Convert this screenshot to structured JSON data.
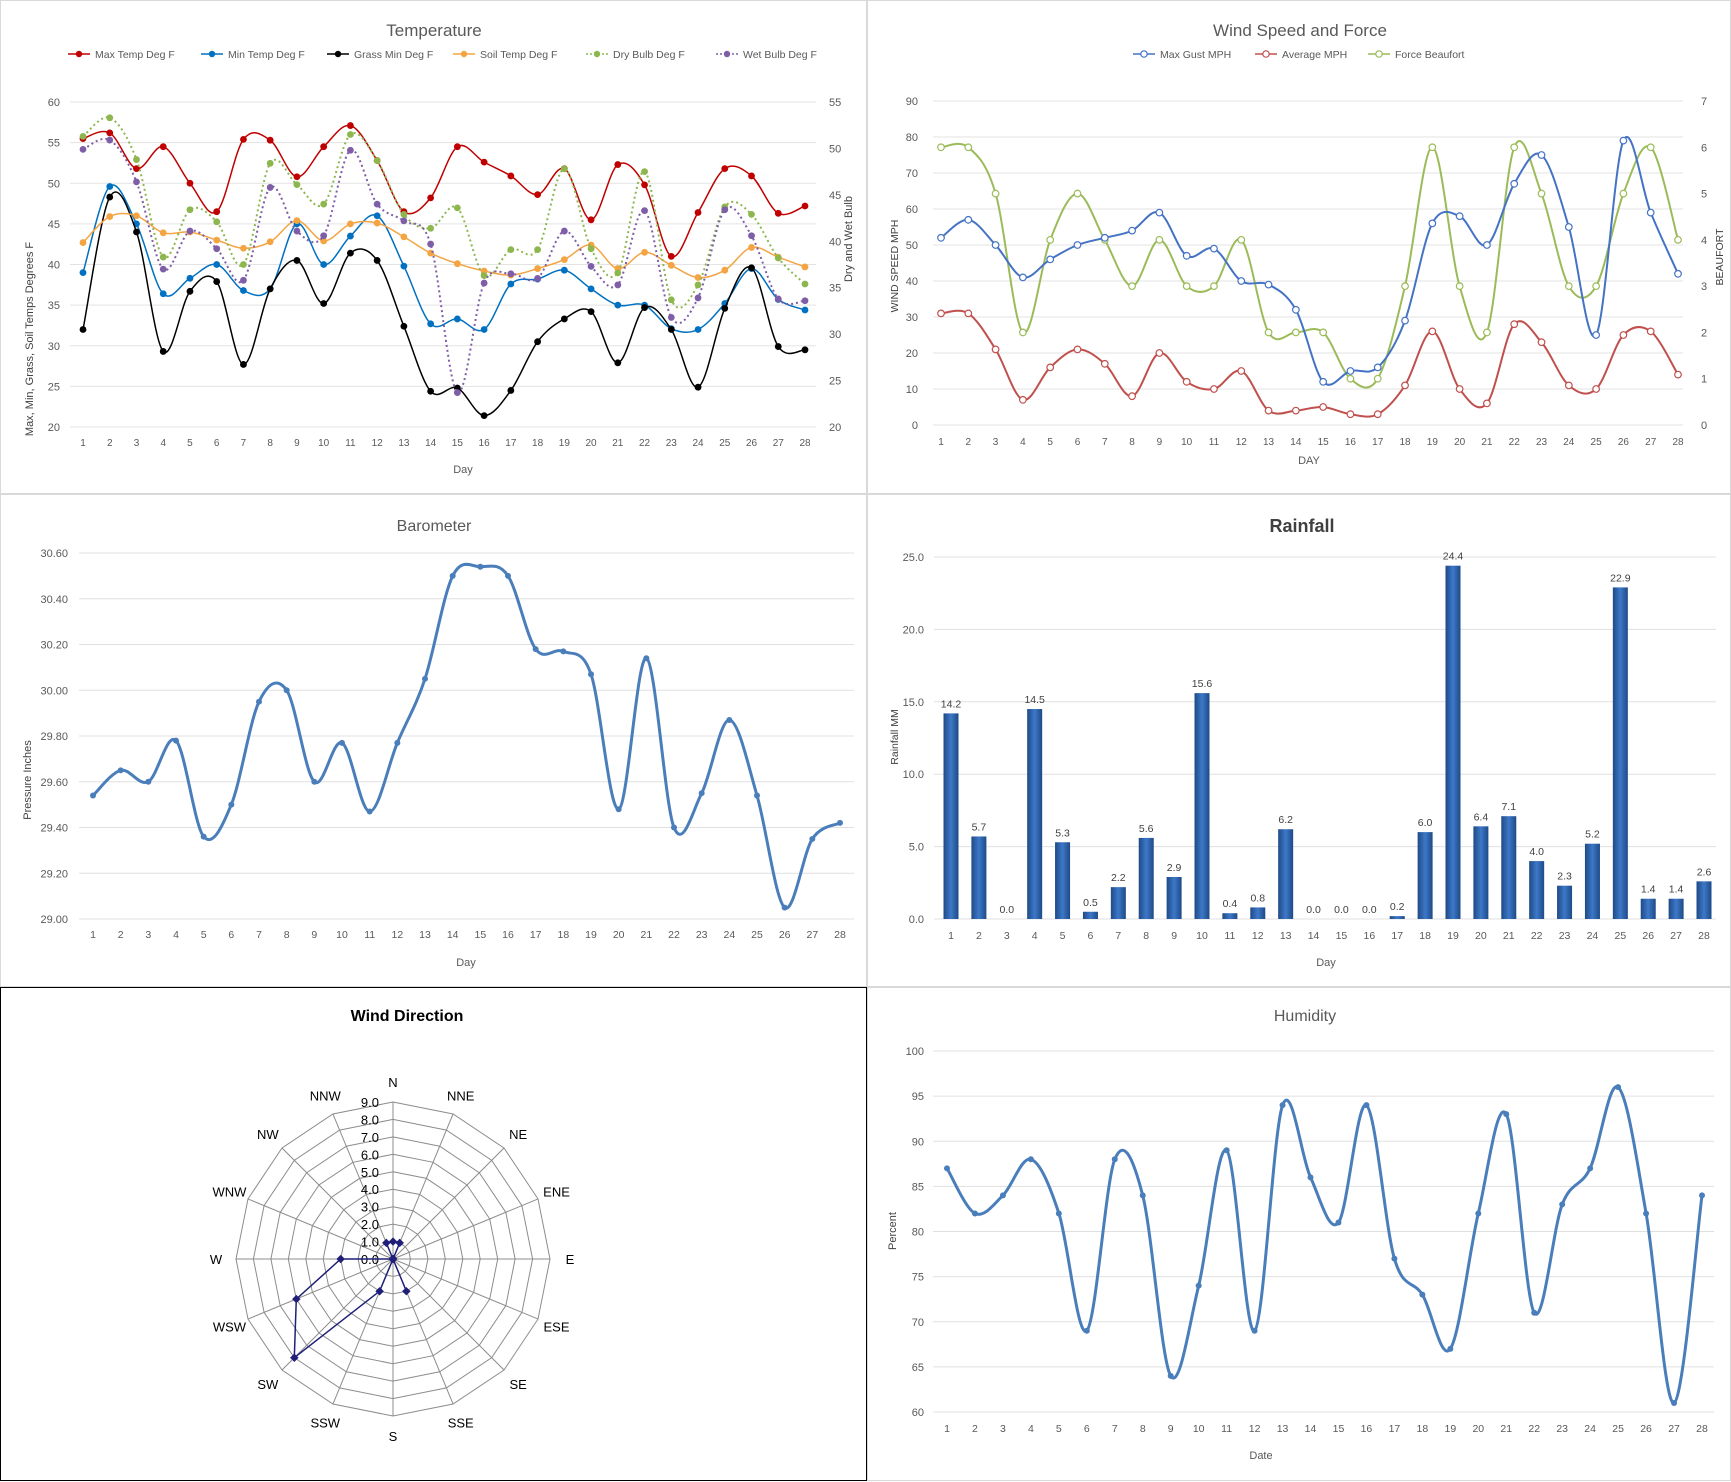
{
  "days": [
    "1",
    "2",
    "3",
    "4",
    "5",
    "6",
    "7",
    "8",
    "9",
    "10",
    "11",
    "12",
    "13",
    "14",
    "15",
    "16",
    "17",
    "18",
    "19",
    "20",
    "21",
    "22",
    "23",
    "24",
    "25",
    "26",
    "27",
    "28"
  ],
  "temperature": {
    "title": "Temperature",
    "xlabel": "Day",
    "ylabel_left": "Max, Min, Grass, Soil Temps Degrees F",
    "ylabel_right": "Dry and Wet Bulb",
    "ylim_left": [
      20,
      60
    ],
    "ylim_right": [
      20,
      55
    ],
    "series": [
      {
        "name": "Max Temp Deg F",
        "color": "#c00000",
        "dash": false,
        "axis": "left",
        "values": [
          55.5,
          56.2,
          51.8,
          54.5,
          50.0,
          46.5,
          55.4,
          55.3,
          50.8,
          54.5,
          57.1,
          52.8,
          46.5,
          48.2,
          54.5,
          52.6,
          50.9,
          48.6,
          51.8,
          45.5,
          52.3,
          49.8,
          41.0,
          46.4,
          51.8,
          50.9,
          46.3,
          47.2
        ]
      },
      {
        "name": "Min Temp Deg F",
        "color": "#0070c0",
        "dash": false,
        "axis": "left",
        "values": [
          39.0,
          49.6,
          45.0,
          36.4,
          38.3,
          40.0,
          36.8,
          37.0,
          45.0,
          40.0,
          43.5,
          46.0,
          39.8,
          32.7,
          33.3,
          32.0,
          37.6,
          38.2,
          39.3,
          37.0,
          35.0,
          35.0,
          32.1,
          32.0,
          35.2,
          39.5,
          35.7,
          34.4
        ]
      },
      {
        "name": "Grass Min Deg F",
        "color": "#000000",
        "dash": false,
        "axis": "left",
        "values": [
          32.0,
          48.3,
          44.0,
          29.3,
          36.7,
          37.9,
          27.7,
          37.0,
          40.5,
          35.2,
          41.4,
          40.5,
          32.4,
          24.4,
          24.8,
          21.4,
          24.5,
          30.5,
          33.3,
          34.2,
          27.9,
          34.7,
          32.0,
          24.9,
          34.6,
          39.6,
          29.9,
          29.5
        ]
      },
      {
        "name": "Soil Temp Deg F",
        "color": "#f4a442",
        "dash": false,
        "axis": "left",
        "values": [
          42.7,
          45.9,
          46.0,
          43.9,
          44.0,
          43.0,
          42.0,
          42.8,
          45.4,
          42.9,
          45.0,
          45.1,
          43.4,
          41.4,
          40.1,
          39.2,
          38.7,
          39.5,
          40.6,
          42.4,
          39.5,
          41.5,
          39.9,
          38.4,
          39.3,
          42.1,
          40.9,
          39.7
        ]
      },
      {
        "name": "Dry Bulb Deg F",
        "color": "#8db74e",
        "dash": true,
        "axis": "right",
        "values": [
          51.3,
          53.3,
          48.8,
          38.3,
          43.4,
          42.1,
          37.5,
          48.4,
          46.1,
          44.0,
          51.5,
          48.7,
          42.9,
          41.4,
          43.6,
          36.3,
          39.1,
          39.1,
          47.8,
          39.2,
          36.6,
          47.5,
          33.7,
          35.3,
          43.7,
          42.9,
          38.2,
          35.4
        ]
      },
      {
        "name": "Wet Bulb Deg F",
        "color": "#7f5ea8",
        "dash": true,
        "axis": "right",
        "values": [
          49.9,
          50.9,
          46.4,
          37.0,
          41.1,
          39.2,
          35.8,
          45.8,
          41.1,
          40.6,
          49.8,
          44.0,
          42.2,
          39.7,
          23.7,
          35.5,
          36.5,
          36.0,
          41.1,
          37.3,
          35.3,
          43.3,
          31.8,
          33.9,
          43.4,
          40.6,
          33.8,
          33.6
        ]
      }
    ]
  },
  "wind": {
    "title": "Wind Speed and Force",
    "xlabel": "DAY",
    "ylabel_left": "WIND SPEED MPH",
    "ylabel_right": "BEAUFORT",
    "ylim_left": [
      0,
      90
    ],
    "ylim_right": [
      0,
      7
    ],
    "series": [
      {
        "name": "Max Gust MPH",
        "color": "#4472c4",
        "axis": "left",
        "values": [
          52,
          57,
          50,
          41,
          46,
          50,
          52,
          54,
          59,
          47,
          49,
          40,
          39,
          32,
          12,
          15,
          16,
          29,
          56,
          58,
          50,
          67,
          75,
          55,
          25,
          79,
          59,
          42
        ]
      },
      {
        "name": "Average MPH",
        "color": "#c0504d",
        "axis": "left",
        "values": [
          31,
          31,
          21,
          7,
          16,
          21,
          17,
          8,
          20,
          12,
          10,
          15,
          4,
          4,
          5,
          3,
          3,
          11,
          26,
          10,
          6,
          28,
          23,
          11,
          10,
          25,
          26,
          14
        ]
      },
      {
        "name": "Force Beaufort",
        "color": "#9bbb59",
        "axis": "right",
        "values": [
          6,
          6,
          5,
          2,
          4,
          5,
          4,
          3,
          4,
          3,
          3,
          4,
          2,
          2,
          2,
          1,
          1,
          3,
          6,
          3,
          2,
          6,
          5,
          3,
          3,
          5,
          6,
          4
        ]
      }
    ]
  },
  "barometer": {
    "title": "Barometer",
    "xlabel": "Day",
    "ylabel": "Pressure Inches",
    "ylim": [
      29.0,
      30.6
    ],
    "yticks": [
      "29.00",
      "29.20",
      "29.40",
      "29.60",
      "29.80",
      "30.00",
      "30.20",
      "30.40",
      "30.60"
    ],
    "color": "#4a7ebb",
    "values": [
      29.54,
      29.65,
      29.6,
      29.78,
      29.36,
      29.5,
      29.95,
      30.0,
      29.6,
      29.77,
      29.47,
      29.77,
      30.05,
      30.5,
      30.54,
      30.5,
      30.18,
      30.17,
      30.07,
      29.48,
      30.14,
      29.4,
      29.55,
      29.87,
      29.54,
      29.05,
      29.35,
      29.42
    ]
  },
  "rainfall": {
    "title": "Rainfall",
    "xlabel": "Day",
    "ylabel": "Rainfall MM",
    "ylim": [
      0,
      25
    ],
    "yticks": [
      "0.0",
      "5.0",
      "10.0",
      "15.0",
      "20.0",
      "25.0"
    ],
    "color": "#2e5fa6",
    "values": [
      14.2,
      5.7,
      0.0,
      14.5,
      5.3,
      0.5,
      2.2,
      5.6,
      2.9,
      15.6,
      0.4,
      0.8,
      6.2,
      0.0,
      0.0,
      0.0,
      0.2,
      6.0,
      24.4,
      6.4,
      7.1,
      4.0,
      2.3,
      5.2,
      22.9,
      1.4,
      1.4,
      2.6
    ],
    "labels": [
      "14.2",
      "5.7",
      "0.0",
      "14.5",
      "5.3",
      "0.5",
      "2.2",
      "5.6",
      "2.9",
      "15.6",
      "0.4",
      "0.8",
      "6.2",
      "0.0",
      "0.0",
      "0.0",
      "0.2",
      "6.0",
      "24.4",
      "6.4",
      "7.1",
      "4.0",
      "2.3",
      "5.2",
      "22.9",
      "1.4",
      "1.4",
      "2.6"
    ]
  },
  "wind_direction": {
    "title": "Wind Direction",
    "directions": [
      "N",
      "NNE",
      "NE",
      "ENE",
      "E",
      "ESE",
      "SE",
      "SSE",
      "S",
      "SSW",
      "SW",
      "WSW",
      "W",
      "WNW",
      "NW",
      "NNW"
    ],
    "rmax": 9,
    "ticks": [
      "0.0",
      "1.0",
      "2.0",
      "3.0",
      "4.0",
      "5.0",
      "6.0",
      "7.0",
      "8.0",
      "9.0"
    ],
    "color": "#1f1f7a",
    "values": [
      1,
      1,
      0,
      0,
      0,
      0,
      0,
      2,
      0,
      2,
      8,
      6,
      3,
      0,
      0,
      1
    ]
  },
  "humidity": {
    "title": "Humidity",
    "xlabel": "Date",
    "ylabel": "Percent",
    "ylim": [
      60,
      100
    ],
    "yticks": [
      "60",
      "65",
      "70",
      "75",
      "80",
      "85",
      "90",
      "95",
      "100"
    ],
    "color": "#4a7ebb",
    "values": [
      87,
      82,
      84,
      88,
      82,
      69,
      88,
      84,
      64,
      74,
      89,
      69,
      94,
      86,
      81,
      94,
      77,
      73,
      67,
      82,
      93,
      71,
      83,
      87,
      96,
      82,
      61,
      84
    ]
  }
}
